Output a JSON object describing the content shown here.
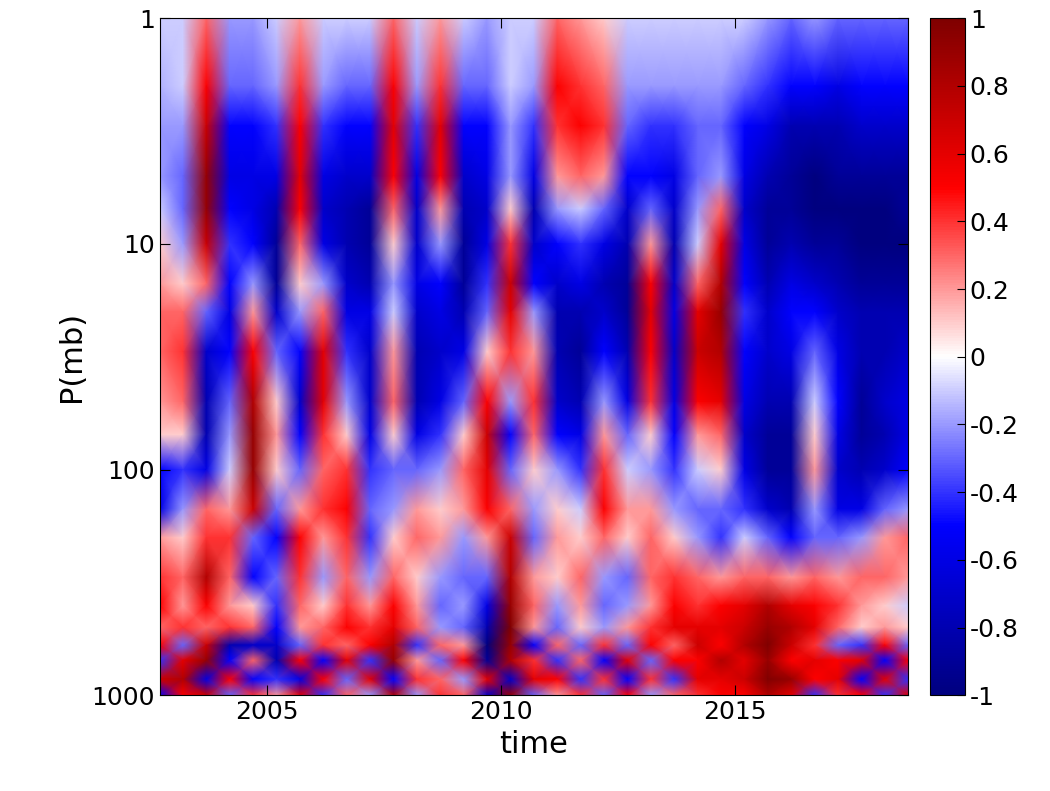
{
  "chart_data": {
    "type": "heatmap",
    "x_label": "time",
    "y_label": "P(mb)",
    "log": "y",
    "xlim": [
      2002.7,
      2018.7
    ],
    "xticks": [
      2005,
      2010,
      2015
    ],
    "ylim": [
      1000,
      1
    ],
    "yticks": [
      1,
      10,
      100,
      1000
    ],
    "color_range": [
      -1,
      1
    ],
    "color_ticks": [
      -1,
      -0.8,
      -0.6,
      -0.4,
      -0.2,
      0,
      0.2,
      0.4,
      0.6,
      0.8,
      1
    ],
    "x": [
      2002.7,
      2003.2,
      2003.7,
      2004.2,
      2004.7,
      2005.2,
      2005.7,
      2006.2,
      2006.7,
      2007.2,
      2007.7,
      2008.2,
      2008.7,
      2009.2,
      2009.7,
      2010.2,
      2010.7,
      2011.2,
      2011.7,
      2012.2,
      2012.7,
      2013.2,
      2013.7,
      2014.2,
      2014.7,
      2015.2,
      2015.7,
      2016.2,
      2016.7,
      2017.2,
      2017.7,
      2018.2,
      2018.7
    ],
    "y": [
      1,
      2,
      3,
      5,
      7,
      10,
      15,
      20,
      30,
      50,
      70,
      100,
      150,
      200,
      300,
      400,
      500,
      600,
      700,
      850,
      1000
    ],
    "values": [
      [
        -0.1,
        -0.15,
        -0.2,
        -0.2,
        -0.1,
        0.1,
        0.2,
        0.3,
        0.3,
        0.2,
        0.1,
        -0.5,
        -0.6,
        0.2,
        0.4,
        0.5,
        0.3,
        0.5,
        -0.4,
        0.7,
        -0.5
      ],
      [
        -0.1,
        -0.1,
        -0.2,
        -0.3,
        -0.3,
        -0.2,
        0.1,
        0.3,
        0.4,
        0.3,
        0.1,
        -0.4,
        -0.2,
        0.1,
        0.3,
        0.2,
        0.4,
        -0.3,
        0.6,
        0.8,
        0.5
      ],
      [
        0.3,
        0.5,
        0.7,
        0.9,
        0.9,
        0.7,
        0.3,
        -0.3,
        -0.7,
        -0.8,
        -0.8,
        -0.6,
        0.3,
        0.4,
        0.8,
        0.5,
        0.3,
        0.7,
        0.9,
        -0.6,
        0.7
      ],
      [
        -0.2,
        -0.3,
        -0.5,
        -0.6,
        -0.5,
        -0.4,
        -0.5,
        -0.6,
        -0.5,
        -0.3,
        -0.2,
        -0.1,
        0.2,
        0.4,
        0.3,
        0.2,
        0.4,
        -0.8,
        -0.5,
        0.5,
        -0.3
      ],
      [
        -0.2,
        -0.3,
        -0.5,
        -0.6,
        -0.6,
        -0.5,
        -0.2,
        0.2,
        0.5,
        0.8,
        0.9,
        0.9,
        0.7,
        -0.3,
        -0.5,
        0.1,
        0.3,
        -0.7,
        0.3,
        -0.5,
        0.4
      ],
      [
        -0.1,
        -0.2,
        -0.4,
        -0.6,
        -0.8,
        -0.9,
        -0.9,
        -0.7,
        -0.3,
        0.1,
        0.2,
        0.1,
        -0.3,
        -0.5,
        -0.3,
        -0.4,
        -0.5,
        -0.7,
        -0.8,
        -0.4,
        0.2
      ],
      [
        0.2,
        0.4,
        0.5,
        0.6,
        0.5,
        0.3,
        0.1,
        -0.2,
        -0.5,
        -0.7,
        -0.5,
        -0.3,
        0.2,
        0.5,
        0.4,
        0.3,
        0.2,
        -0.3,
        0.5,
        -0.6,
        0.6
      ],
      [
        -0.1,
        -0.2,
        -0.4,
        -0.6,
        -0.7,
        -0.6,
        -0.2,
        0.3,
        0.6,
        0.6,
        0.4,
        0.3,
        0.4,
        0.2,
        -0.2,
        0.1,
        0.3,
        0.4,
        -0.5,
        0.5,
        -0.4
      ],
      [
        -0.1,
        -0.3,
        -0.5,
        -0.7,
        -0.8,
        -0.8,
        -0.7,
        -0.6,
        -0.4,
        -0.2,
        0.1,
        0.4,
        0.5,
        0.4,
        0.3,
        0.4,
        0.5,
        0.3,
        0.6,
        -0.3,
        0.3
      ],
      [
        -0.1,
        -0.3,
        -0.5,
        -0.7,
        -0.9,
        -0.9,
        -0.8,
        -0.6,
        -0.7,
        -0.7,
        -0.6,
        -0.4,
        -0.3,
        -0.4,
        -0.2,
        0.2,
        0.4,
        0.5,
        -0.4,
        0.6,
        -0.2
      ],
      [
        0.3,
        0.5,
        0.6,
        0.5,
        0.3,
        0.1,
        -0.2,
        -0.1,
        0.2,
        0.3,
        0.1,
        -0.3,
        -0.2,
        0.1,
        0.3,
        0.5,
        0.6,
        0.8,
        0.9,
        -0.5,
        0.8
      ],
      [
        -0.1,
        -0.2,
        -0.4,
        -0.6,
        -0.7,
        -0.7,
        -0.6,
        -0.7,
        -0.8,
        -0.8,
        -0.6,
        -0.3,
        0.2,
        0.3,
        0.1,
        0.2,
        0.3,
        -0.4,
        0.2,
        0.4,
        -0.2
      ],
      [
        0.2,
        0.4,
        0.6,
        0.5,
        0.2,
        -0.2,
        -0.5,
        -0.6,
        -0.7,
        -0.6,
        -0.4,
        -0.2,
        0.1,
        0.2,
        -0.2,
        -0.3,
        -0.2,
        0.3,
        -0.3,
        0.3,
        0.4
      ],
      [
        -0.1,
        -0.3,
        -0.5,
        -0.7,
        -0.8,
        -0.9,
        -0.9,
        -0.8,
        -0.6,
        -0.3,
        0.1,
        0.3,
        0.2,
        -0.2,
        -0.3,
        -0.2,
        -0.3,
        0.2,
        0.5,
        -0.2,
        0.3
      ],
      [
        -0.2,
        -0.3,
        -0.5,
        -0.6,
        -0.7,
        -0.6,
        -0.4,
        -0.3,
        0.1,
        0.5,
        0.7,
        0.6,
        0.5,
        0.2,
        -0.3,
        -0.6,
        -0.8,
        -1.0,
        -0.9,
        0.6,
        -0.7
      ],
      [
        -0.1,
        -0.1,
        -0.2,
        -0.2,
        0.1,
        0.4,
        0.7,
        0.6,
        0.4,
        -0.2,
        -0.5,
        -0.3,
        0.3,
        0.7,
        0.8,
        0.9,
        1.0,
        0.9,
        0.8,
        -0.7,
        0.9
      ],
      [
        -0.1,
        -0.2,
        -0.4,
        -0.6,
        -0.8,
        -0.7,
        -0.5,
        -0.2,
        0.2,
        0.4,
        0.3,
        0.1,
        -0.2,
        -0.3,
        0.2,
        0.3,
        0.2,
        -0.5,
        0.4,
        0.6,
        -0.3
      ],
      [
        0.3,
        0.5,
        0.4,
        0.2,
        -0.2,
        -0.5,
        -0.7,
        -0.8,
        -0.8,
        -0.7,
        -0.5,
        -0.2,
        0.1,
        0.2,
        0.1,
        -0.2,
        -0.3,
        0.3,
        -0.4,
        0.5,
        0.2
      ],
      [
        0.2,
        0.4,
        0.5,
        0.3,
        -0.1,
        -0.4,
        -0.6,
        -0.8,
        -0.9,
        -0.8,
        -0.6,
        -0.4,
        -0.1,
        0.1,
        0.3,
        0.2,
        0.1,
        -0.3,
        0.3,
        -0.4,
        0.4
      ],
      [
        0.1,
        0.3,
        0.4,
        0.2,
        -0.3,
        -0.6,
        -0.8,
        -0.7,
        -0.5,
        -0.2,
        0.2,
        0.4,
        0.5,
        0.3,
        -0.2,
        -0.3,
        -0.2,
        0.4,
        -0.5,
        0.4,
        -0.3
      ],
      [
        -0.1,
        -0.2,
        -0.3,
        -0.5,
        -0.7,
        -0.8,
        -0.9,
        -0.9,
        -0.8,
        -0.6,
        -0.3,
        -0.1,
        0.2,
        0.1,
        -0.3,
        -0.2,
        0.2,
        -0.3,
        0.6,
        -0.5,
        0.5
      ],
      [
        -0.1,
        -0.2,
        -0.4,
        -0.5,
        -0.3,
        0.2,
        0.5,
        0.6,
        0.5,
        0.4,
        0.1,
        -0.2,
        0.2,
        0.3,
        0.3,
        0.2,
        0.4,
        0.5,
        -0.3,
        0.4,
        -0.2
      ],
      [
        -0.1,
        -0.2,
        -0.4,
        -0.6,
        -0.7,
        -0.8,
        -0.7,
        -0.6,
        -0.7,
        -0.6,
        -0.5,
        -0.4,
        -0.2,
        0.1,
        0.4,
        0.5,
        0.6,
        0.3,
        0.5,
        -0.4,
        0.3
      ],
      [
        -0.1,
        -0.2,
        -0.3,
        -0.3,
        -0.2,
        -0.1,
        0.3,
        0.6,
        0.7,
        0.5,
        0.2,
        -0.1,
        -0.3,
        -0.2,
        0.3,
        0.4,
        0.6,
        0.7,
        0.5,
        0.6,
        0.4
      ],
      [
        -0.1,
        -0.2,
        -0.3,
        -0.2,
        0.3,
        0.6,
        0.8,
        0.9,
        0.8,
        0.6,
        0.3,
        0.1,
        -0.3,
        -0.4,
        0.2,
        0.5,
        0.6,
        0.5,
        0.8,
        0.6,
        0.5
      ],
      [
        -0.1,
        -0.3,
        -0.5,
        -0.6,
        -0.7,
        -0.6,
        -0.5,
        -0.4,
        -0.5,
        -0.6,
        -0.7,
        -0.6,
        -0.4,
        -0.1,
        0.3,
        0.6,
        0.7,
        0.8,
        0.6,
        0.7,
        0.5
      ],
      [
        -0.2,
        -0.4,
        -0.6,
        -0.8,
        -0.9,
        -0.9,
        -0.8,
        -0.7,
        -0.7,
        -0.8,
        -0.9,
        -0.9,
        -0.7,
        -0.3,
        0.3,
        0.8,
        0.9,
        1.0,
        0.9,
        1.0,
        0.8
      ],
      [
        -0.3,
        -0.5,
        -0.8,
        -0.9,
        -0.9,
        -0.8,
        -0.6,
        -0.5,
        -0.6,
        -0.8,
        -0.9,
        -0.9,
        -0.8,
        -0.5,
        0.2,
        0.6,
        0.8,
        0.7,
        0.5,
        0.9,
        0.6
      ],
      [
        -0.2,
        -0.5,
        -0.8,
        -1.0,
        -1.0,
        -0.9,
        -0.7,
        -0.5,
        -0.3,
        -0.1,
        0.1,
        0.2,
        -0.2,
        -0.3,
        0.3,
        0.5,
        0.6,
        0.4,
        0.6,
        0.5,
        -0.4
      ],
      [
        -0.3,
        -0.6,
        -0.8,
        -0.9,
        -1.0,
        -0.9,
        -0.8,
        -0.7,
        -0.6,
        -0.5,
        -0.6,
        -0.7,
        -0.6,
        -0.3,
        0.2,
        0.4,
        0.3,
        -0.3,
        0.5,
        0.6,
        0.4
      ],
      [
        -0.3,
        -0.5,
        -0.7,
        -0.9,
        -1.0,
        -1.0,
        -0.9,
        -0.8,
        -0.8,
        -0.9,
        -0.9,
        -0.8,
        -0.6,
        -0.2,
        0.3,
        0.2,
        0.1,
        -0.4,
        0.6,
        -0.5,
        0.5
      ],
      [
        -0.3,
        -0.5,
        -0.7,
        -0.9,
        -1.0,
        -1.0,
        -0.9,
        -0.8,
        -0.8,
        -0.7,
        -0.8,
        -0.7,
        -0.3,
        0.2,
        0.3,
        0.1,
        0.2,
        0.5,
        -0.5,
        0.6,
        -0.4
      ],
      [
        -0.3,
        -0.5,
        -0.7,
        -0.9,
        -0.9,
        -1.0,
        -0.9,
        -0.8,
        -0.7,
        -0.6,
        -0.6,
        -0.5,
        -0.2,
        0.3,
        0.2,
        -0.1,
        0.1,
        -0.3,
        0.5,
        -0.4,
        0.6
      ]
    ]
  }
}
